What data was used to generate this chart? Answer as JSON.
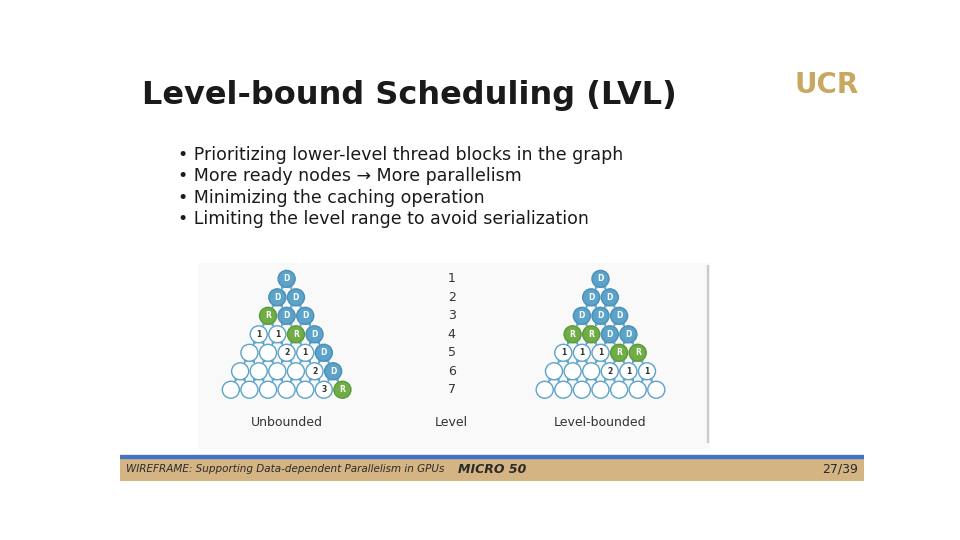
{
  "title": "Level-bound Scheduling (LVL)",
  "bullets": [
    "Prioritizing lower-level thread blocks in the graph",
    "More ready nodes → More parallelism",
    "Minimizing the caching operation",
    "Limiting the level range to avoid serialization"
  ],
  "footer_left": "WIREFRAME: Supporting Data-dependent Parallelism in GPUs",
  "footer_center": "MICRO 50",
  "footer_right": "27/39",
  "bg_color": "#ffffff",
  "title_color": "#1a1a1a",
  "footer_bg": "#d4b483",
  "footer_line_color": "#4472c4",
  "node_blue": "#5ba3c9",
  "node_green": "#70ad47",
  "node_white": "#ffffff",
  "node_border_blue": "#4a8fb5",
  "node_border_green": "#5a9a37",
  "node_border_white": "#5ba3c9",
  "ucr_color": "#c8a860",
  "diagram_bg": "#f9f9f9",
  "separator_color": "#cccccc"
}
